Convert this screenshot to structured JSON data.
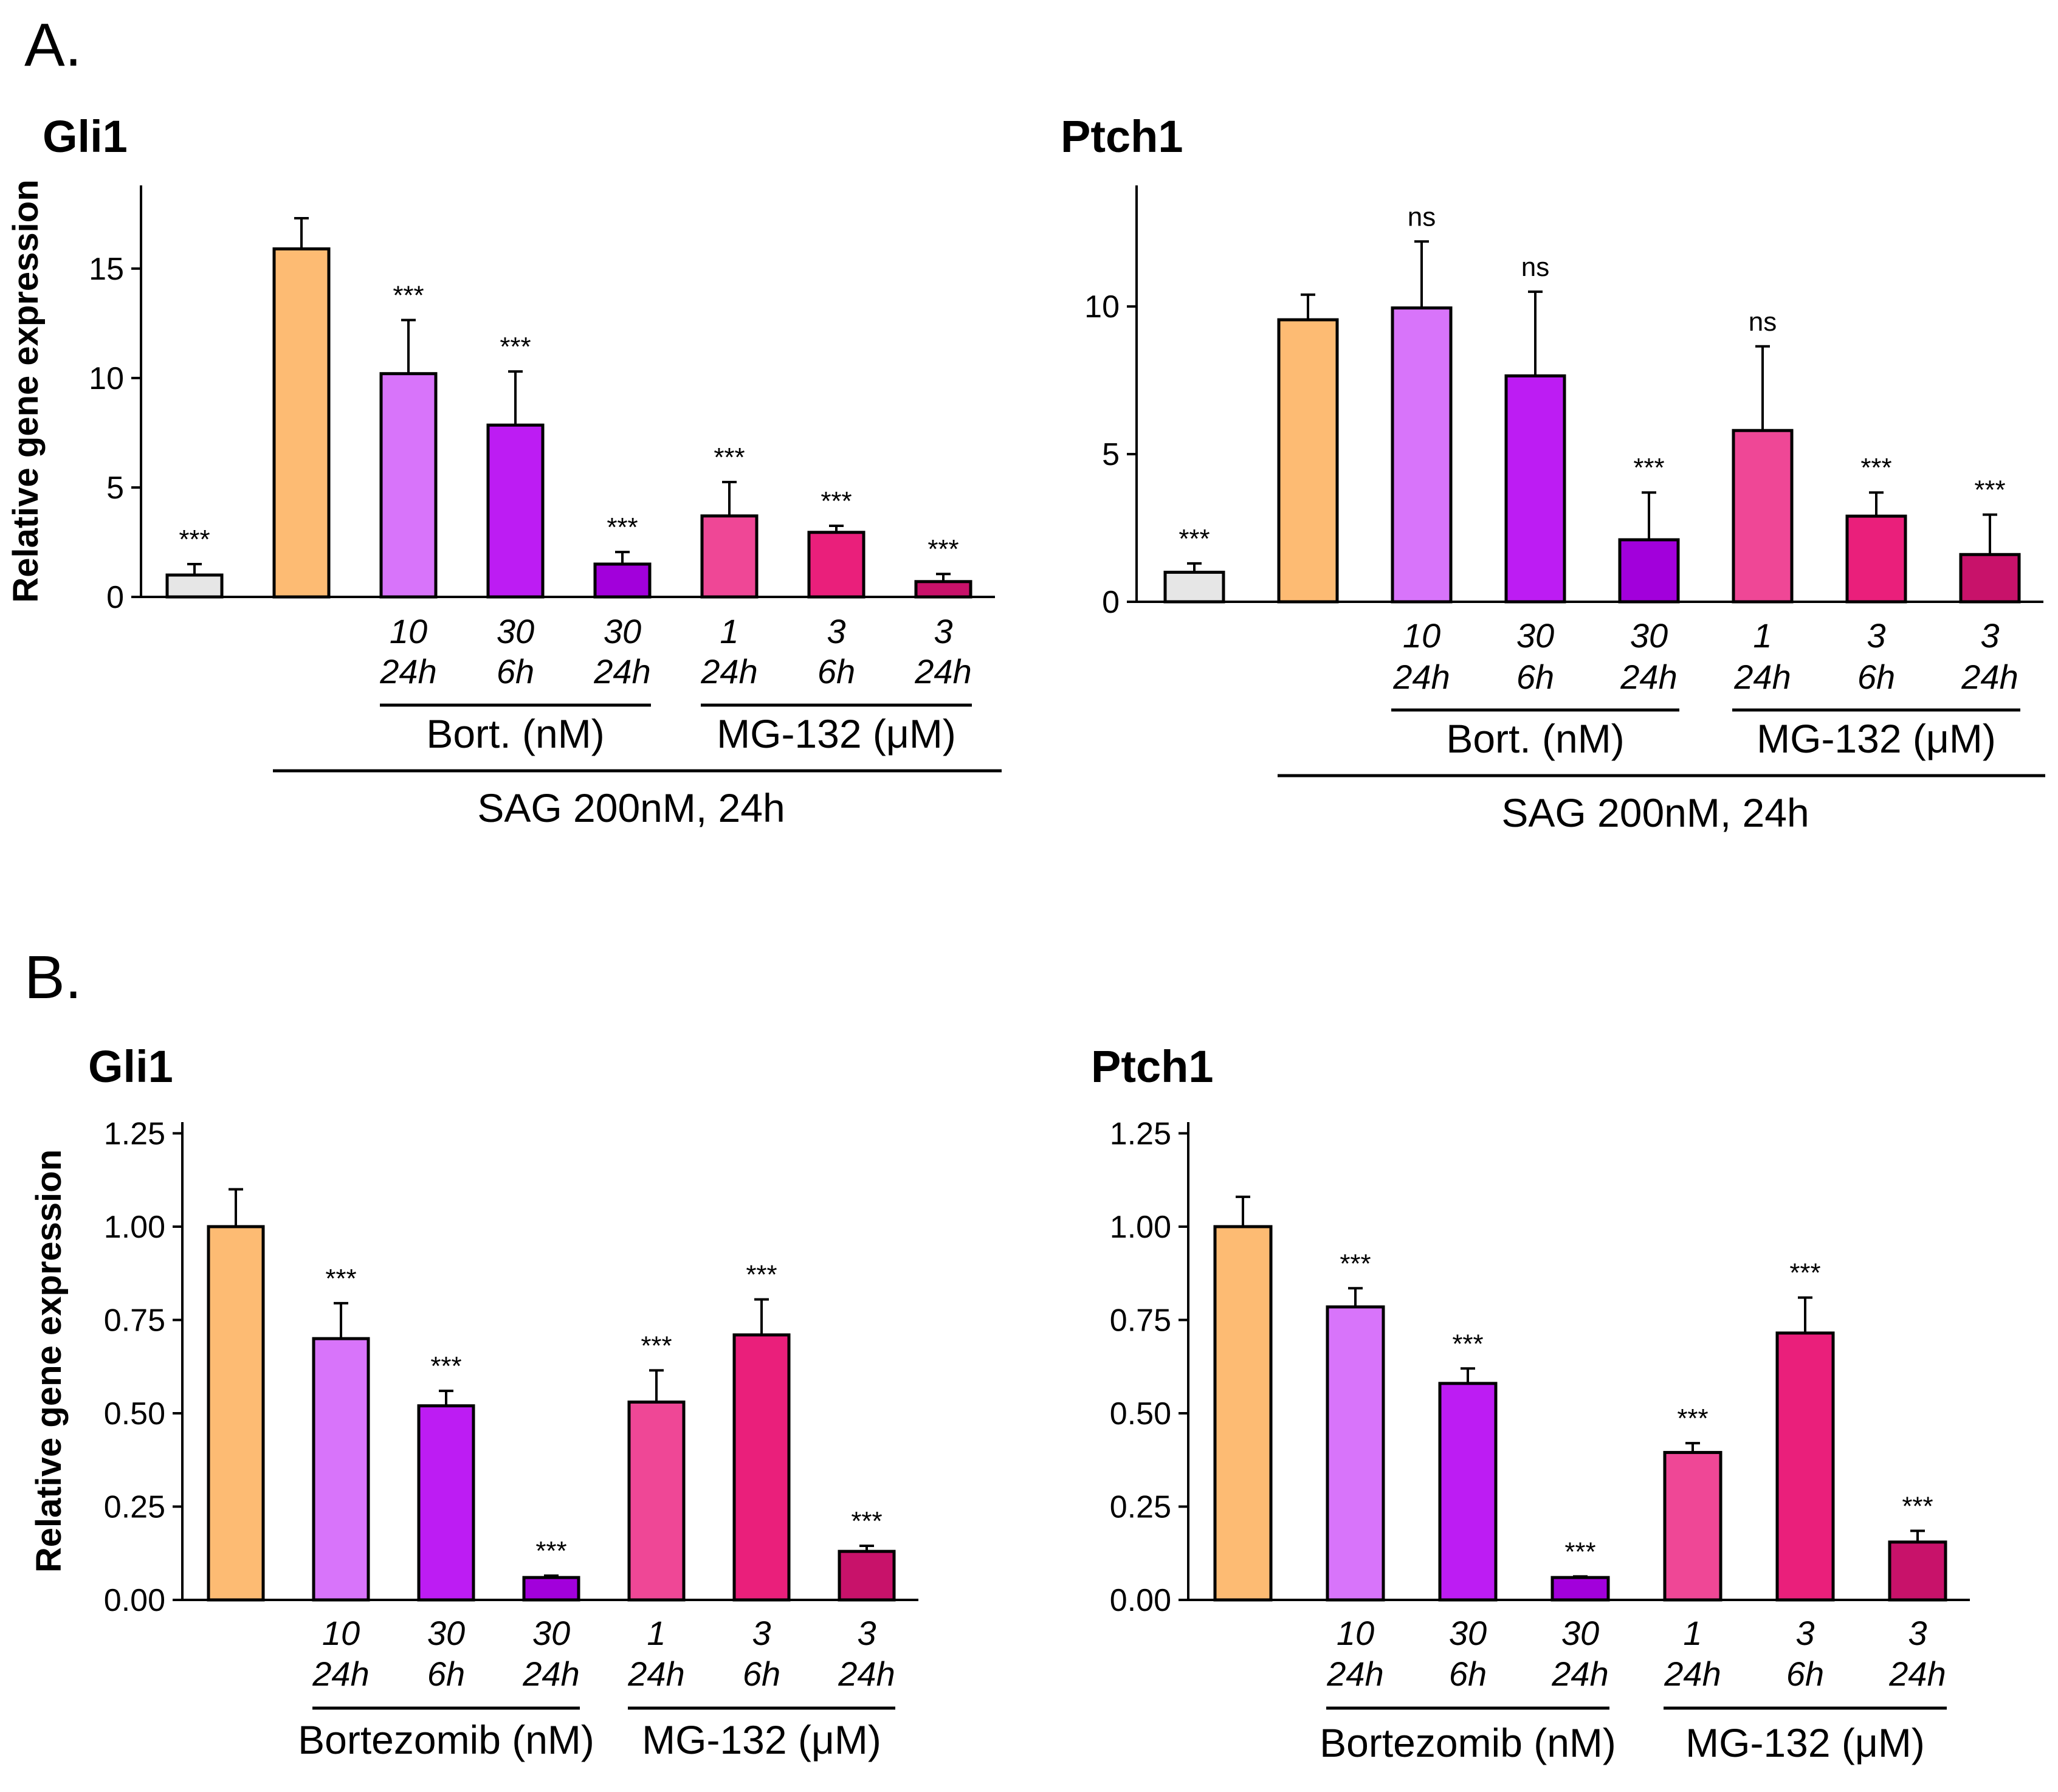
{
  "panels": [
    {
      "letter": "A."
    },
    {
      "letter": "B."
    }
  ],
  "chart_data": [
    {
      "type": "bar",
      "panel": "A.",
      "title": "Gli1",
      "ylabel": "Relative gene expression",
      "ylim": [
        0,
        18.8
      ],
      "yticks": [
        0,
        5,
        10,
        15
      ],
      "ytick_labels": [
        "0",
        "5",
        "10",
        "15"
      ],
      "grid": false,
      "categories": [
        {
          "dose": "",
          "time": ""
        },
        {
          "dose": "",
          "time": ""
        },
        {
          "dose": "10",
          "time": "24h"
        },
        {
          "dose": "30",
          "time": "6h"
        },
        {
          "dose": "30",
          "time": "24h"
        },
        {
          "dose": "1",
          "time": "24h"
        },
        {
          "dose": "3",
          "time": "6h"
        },
        {
          "dose": "3",
          "time": "24h"
        }
      ],
      "values": [
        1.0,
        15.9,
        10.2,
        7.85,
        1.5,
        3.7,
        2.95,
        0.7
      ],
      "errors": [
        0.5,
        1.4,
        2.45,
        2.45,
        0.55,
        1.55,
        0.3,
        0.35
      ],
      "significance": [
        "***",
        "",
        "***",
        "***",
        "***",
        "***",
        "***",
        "***"
      ],
      "colors": [
        "#e6e6e6",
        "#fdbb73",
        "#d874fa",
        "#bd1cf3",
        "#a200db",
        "#ef4796",
        "#ea1f7b",
        "#c8126a"
      ],
      "groups": [
        {
          "label": "Bort. (nM)",
          "from": 2,
          "to": 4
        },
        {
          "label": "MG-132 (μM)",
          "from": 5,
          "to": 7
        }
      ],
      "outer_group": {
        "label": "SAG 200nM, 24h",
        "from": 1,
        "to": 7
      }
    },
    {
      "type": "bar",
      "panel": "A.",
      "title": "Ptch1",
      "ylabel": "",
      "ylim": [
        0,
        14.1
      ],
      "yticks": [
        0,
        5,
        10
      ],
      "ytick_labels": [
        "0",
        "5",
        "10"
      ],
      "grid": false,
      "categories": [
        {
          "dose": "",
          "time": ""
        },
        {
          "dose": "",
          "time": ""
        },
        {
          "dose": "10",
          "time": "24h"
        },
        {
          "dose": "30",
          "time": "6h"
        },
        {
          "dose": "30",
          "time": "24h"
        },
        {
          "dose": "1",
          "time": "24h"
        },
        {
          "dose": "3",
          "time": "6h"
        },
        {
          "dose": "3",
          "time": "24h"
        }
      ],
      "values": [
        1.0,
        9.55,
        9.95,
        7.65,
        2.1,
        5.8,
        2.9,
        1.6
      ],
      "errors": [
        0.3,
        0.85,
        2.25,
        2.85,
        1.6,
        2.85,
        0.8,
        1.35
      ],
      "significance": [
        "***",
        "",
        "ns",
        "ns",
        "***",
        "ns",
        "***",
        "***"
      ],
      "colors": [
        "#e6e6e6",
        "#fdbb73",
        "#d874fa",
        "#bd1cf3",
        "#a200db",
        "#ef4796",
        "#ea1f7b",
        "#c8126a"
      ],
      "groups": [
        {
          "label": "Bort. (nM)",
          "from": 2,
          "to": 4
        },
        {
          "label": "MG-132 (μM)",
          "from": 5,
          "to": 7
        }
      ],
      "outer_group": {
        "label": "SAG 200nM, 24h",
        "from": 1,
        "to": 7
      }
    },
    {
      "type": "bar",
      "panel": "B.",
      "title": "Gli1",
      "ylabel": "Relative gene expression",
      "ylim": [
        0,
        1.28
      ],
      "yticks": [
        0,
        0.25,
        0.5,
        0.75,
        1.0,
        1.25
      ],
      "ytick_labels": [
        "0.00",
        "0.25",
        "0.50",
        "0.75",
        "1.00",
        "1.25"
      ],
      "grid": false,
      "categories": [
        {
          "dose": "",
          "time": ""
        },
        {
          "dose": "10",
          "time": "24h"
        },
        {
          "dose": "30",
          "time": "6h"
        },
        {
          "dose": "30",
          "time": "24h"
        },
        {
          "dose": "1",
          "time": "24h"
        },
        {
          "dose": "3",
          "time": "6h"
        },
        {
          "dose": "3",
          "time": "24h"
        }
      ],
      "values": [
        1.0,
        0.7,
        0.52,
        0.06,
        0.53,
        0.71,
        0.13
      ],
      "errors": [
        0.1,
        0.095,
        0.04,
        0.005,
        0.085,
        0.095,
        0.015
      ],
      "significance": [
        "",
        "***",
        "***",
        "***",
        "***",
        "***",
        "***"
      ],
      "colors": [
        "#fdbb73",
        "#d874fa",
        "#bd1cf3",
        "#a200db",
        "#ef4796",
        "#ea1f7b",
        "#c8126a"
      ],
      "groups": [
        {
          "label": "Bortezomib (nM)",
          "from": 1,
          "to": 3
        },
        {
          "label": "MG-132 (μM)",
          "from": 4,
          "to": 6
        }
      ]
    },
    {
      "type": "bar",
      "panel": "B.",
      "title": "Ptch1",
      "ylabel": "",
      "ylim": [
        0,
        1.28
      ],
      "yticks": [
        0,
        0.25,
        0.5,
        0.75,
        1.0,
        1.25
      ],
      "ytick_labels": [
        "0.00",
        "0.25",
        "0.50",
        "0.75",
        "1.00",
        "1.25"
      ],
      "grid": false,
      "categories": [
        {
          "dose": "",
          "time": ""
        },
        {
          "dose": "10",
          "time": "24h"
        },
        {
          "dose": "30",
          "time": "6h"
        },
        {
          "dose": "30",
          "time": "24h"
        },
        {
          "dose": "1",
          "time": "24h"
        },
        {
          "dose": "3",
          "time": "6h"
        },
        {
          "dose": "3",
          "time": "24h"
        }
      ],
      "values": [
        1.0,
        0.785,
        0.58,
        0.06,
        0.395,
        0.715,
        0.155
      ],
      "errors": [
        0.08,
        0.05,
        0.04,
        0.003,
        0.025,
        0.095,
        0.03
      ],
      "significance": [
        "",
        "***",
        "***",
        "***",
        "***",
        "***",
        "***"
      ],
      "colors": [
        "#fdbb73",
        "#d874fa",
        "#bd1cf3",
        "#a200db",
        "#ef4796",
        "#ea1f7b",
        "#c8126a"
      ],
      "groups": [
        {
          "label": "Bortezomib (nM)",
          "from": 1,
          "to": 3
        },
        {
          "label": "MG-132 (μM)",
          "from": 4,
          "to": 6
        }
      ]
    }
  ]
}
